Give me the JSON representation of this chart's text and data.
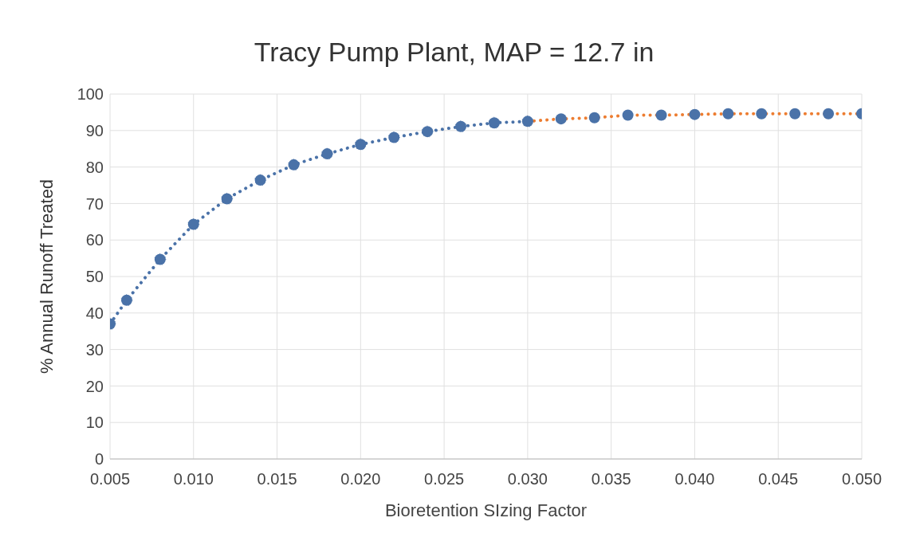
{
  "chart_data": {
    "type": "line",
    "title": "Tracy Pump Plant, MAP = 12.7 in",
    "xlabel": "Bioretention SIzing Factor",
    "ylabel": "% Annual Runoff Treated",
    "xlim": [
      0.005,
      0.05
    ],
    "ylim": [
      0,
      100
    ],
    "xticks": [
      {
        "value": 0.005,
        "label": "0.005"
      },
      {
        "value": 0.01,
        "label": "0.010"
      },
      {
        "value": 0.015,
        "label": "0.015"
      },
      {
        "value": 0.02,
        "label": "0.020"
      },
      {
        "value": 0.025,
        "label": "0.025"
      },
      {
        "value": 0.03,
        "label": "0.030"
      },
      {
        "value": 0.035,
        "label": "0.035"
      },
      {
        "value": 0.04,
        "label": "0.040"
      },
      {
        "value": 0.045,
        "label": "0.045"
      },
      {
        "value": 0.05,
        "label": "0.050"
      }
    ],
    "yticks": [
      0,
      10,
      20,
      30,
      40,
      50,
      60,
      70,
      80,
      90,
      100
    ],
    "grid": true,
    "line_style": "dotted",
    "marker": "circle",
    "series": [
      {
        "color": "#ed7d31",
        "marker": "none",
        "x": [
          0.03,
          0.032,
          0.034,
          0.036,
          0.038,
          0.04,
          0.042,
          0.044,
          0.046,
          0.048,
          0.05
        ],
        "values": [
          92.5,
          93.2,
          93.5,
          94.2,
          94.2,
          94.4,
          94.6,
          94.6,
          94.6,
          94.6,
          94.6
        ]
      },
      {
        "color": "#4a72a8",
        "x": [
          0.005,
          0.006,
          0.008,
          0.01,
          0.012,
          0.014,
          0.016,
          0.018,
          0.02,
          0.022,
          0.024,
          0.026,
          0.028,
          0.03
        ],
        "values": [
          37,
          43.5,
          54.7,
          64.3,
          71.3,
          76.4,
          80.6,
          83.6,
          86.2,
          88.1,
          89.7,
          91.1,
          92.1,
          92.5
        ]
      },
      {
        "type": "scatter",
        "color": "#4a72a8",
        "x": [
          0.032,
          0.034,
          0.036,
          0.038,
          0.04,
          0.042,
          0.044,
          0.046,
          0.048,
          0.05
        ],
        "values": [
          93.2,
          93.5,
          94.2,
          94.2,
          94.4,
          94.6,
          94.6,
          94.6,
          94.6,
          94.6
        ]
      }
    ]
  }
}
